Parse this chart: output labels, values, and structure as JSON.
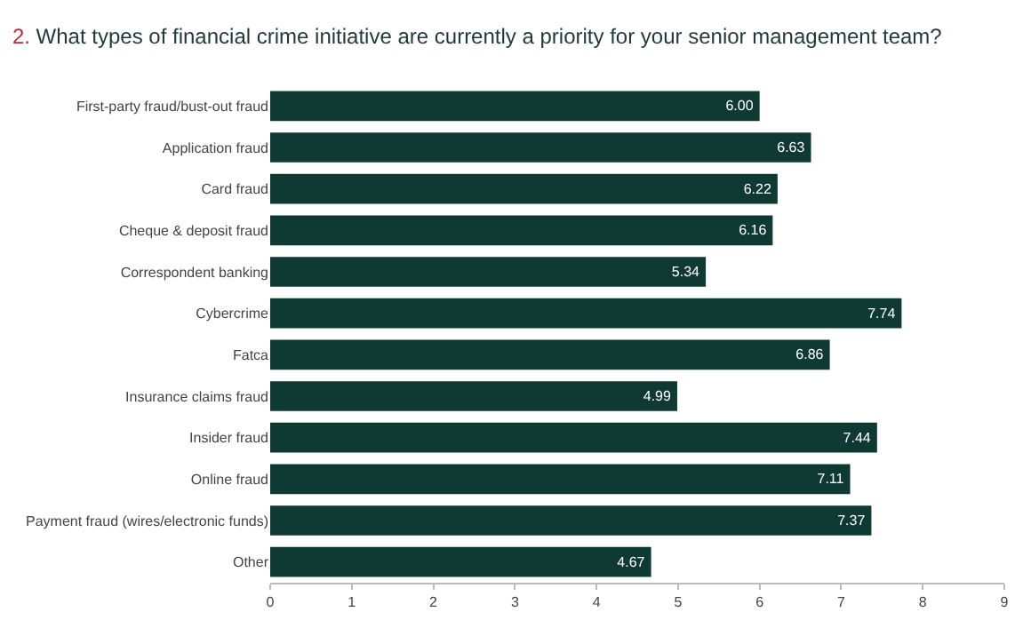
{
  "chart_data": {
    "type": "bar",
    "orientation": "horizontal",
    "title": "2. What types of financial crime initiative are currently a priority for your senior management team?",
    "categories": [
      "First-party fraud/bust-out fraud",
      "Application fraud",
      "Card fraud",
      "Cheque & deposit fraud",
      "Correspondent banking",
      "Cybercrime",
      "Fatca",
      "Insurance claims fraud",
      "Insider fraud",
      "Online fraud",
      "Payment fraud (wires/electronic funds)",
      "Other"
    ],
    "values": [
      6.0,
      6.63,
      6.22,
      6.16,
      5.34,
      7.74,
      6.86,
      4.99,
      7.44,
      7.11,
      7.37,
      4.67
    ],
    "value_labels": [
      "6.00",
      "6.63",
      "6.22",
      "6.16",
      "5.34",
      "7.74",
      "6.86",
      "4.99",
      "7.44",
      "7.11",
      "7.37",
      "4.67"
    ],
    "color": "#0f3a33",
    "xlim": [
      0,
      9
    ],
    "xticks": [
      0,
      1,
      2,
      3,
      4,
      5,
      6,
      7,
      8,
      9
    ]
  }
}
